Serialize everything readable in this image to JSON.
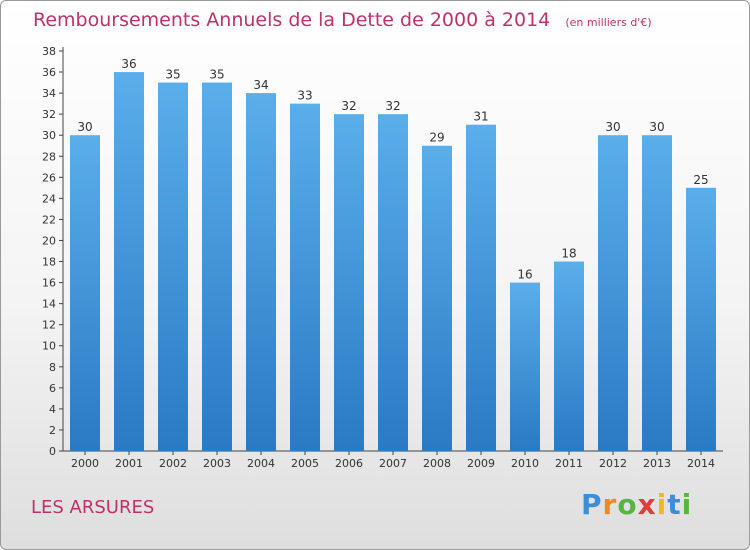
{
  "chart_data": {
    "type": "bar",
    "title": "Remboursements Annuels de la Dette de 2000 à 2014",
    "unit_note": "(en milliers d'€)",
    "categories": [
      "2000",
      "2001",
      "2002",
      "2003",
      "2004",
      "2005",
      "2006",
      "2007",
      "2008",
      "2009",
      "2010",
      "2011",
      "2012",
      "2013",
      "2014"
    ],
    "values": [
      30,
      36,
      35,
      35,
      34,
      33,
      32,
      32,
      29,
      31,
      16,
      18,
      30,
      30,
      25
    ],
    "ylim": [
      0,
      38
    ],
    "ytick_step": 2,
    "grid": false,
    "bar_color": "#4a9fe0",
    "xlabel": "",
    "ylabel": ""
  },
  "commune": "LES ARSURES",
  "brand": {
    "letters": [
      "P",
      "r",
      "o",
      "x",
      "i",
      "t",
      "i"
    ],
    "colors": [
      "#3a8fd8",
      "#f08a1c",
      "#59b53d",
      "#e23b3b",
      "#f2b81c",
      "#3a8fd8",
      "#59b53d"
    ]
  }
}
